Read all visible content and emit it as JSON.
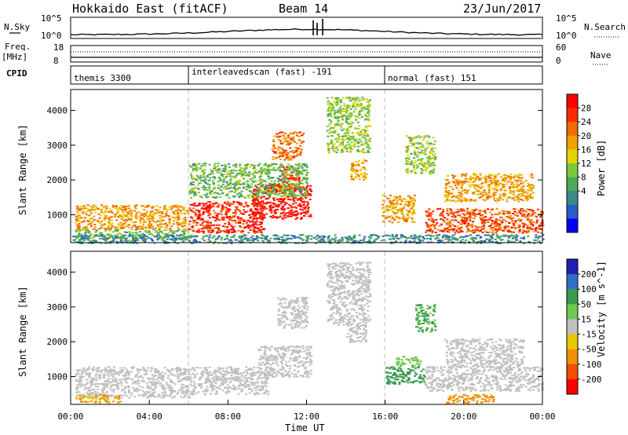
{
  "header": {
    "station": "Hokkaido East (fitACF)",
    "beam": "Beam 14",
    "date": "23/Jun/2017"
  },
  "noise_panel": {
    "left_label": "N.Sky",
    "left_ticks": [
      "10^5",
      "10^0"
    ],
    "right_label": "N.Search",
    "right_ticks": [
      "10^5",
      "10^0"
    ]
  },
  "freq_panel": {
    "left_label_top": "Freq.",
    "left_label_bottom": "[MHz]",
    "left_ticks": [
      "18",
      "8"
    ],
    "right_label": "Nave",
    "right_ticks": [
      "60",
      "0"
    ]
  },
  "cpid_panel": {
    "label": "CPID",
    "modes": [
      {
        "name": "themis 3300"
      },
      {
        "name": "interleavedscan (fast) -191"
      },
      {
        "name": "normal (fast) 151"
      }
    ]
  },
  "chart_data": [
    {
      "type": "heatmap",
      "panel": "power",
      "ylabel": "Slant Range [km]",
      "xlabel": "",
      "x_range_hours": [
        0,
        24
      ],
      "ylim": [
        200,
        4600
      ],
      "y_ticks": [
        "1000",
        "2000",
        "3000",
        "4000"
      ],
      "colorbar": {
        "label": "Power [dB]",
        "ticks": [
          "4",
          "8",
          "12",
          "16",
          "20",
          "24",
          "28"
        ],
        "colors": [
          "#0000ff",
          "#2a5cc8",
          "#3a8a8a",
          "#4ea85a",
          "#7cc83c",
          "#e6d200",
          "#f0a000",
          "#f06a00",
          "#ff2a00",
          "#ff0000"
        ]
      },
      "blobs": [
        {
          "t0": 0.2,
          "t1": 6.0,
          "r0": 600,
          "r1": 1300,
          "v": 20
        },
        {
          "t0": 0.2,
          "t1": 6.0,
          "r0": 300,
          "r1": 600,
          "v": 12
        },
        {
          "t0": 6.0,
          "t1": 9.8,
          "r0": 500,
          "r1": 1400,
          "v": 26
        },
        {
          "t0": 9.2,
          "t1": 12.2,
          "r0": 900,
          "r1": 1900,
          "v": 28
        },
        {
          "t0": 10.5,
          "t1": 11.6,
          "r0": 1700,
          "r1": 2400,
          "v": 26
        },
        {
          "t0": 10.2,
          "t1": 11.8,
          "r0": 2600,
          "r1": 3400,
          "v": 22
        },
        {
          "t0": 13.0,
          "t1": 15.2,
          "r0": 2800,
          "r1": 4400,
          "v": 14
        },
        {
          "t0": 14.2,
          "t1": 15.0,
          "r0": 2000,
          "r1": 2600,
          "v": 20
        },
        {
          "t0": 15.8,
          "t1": 17.5,
          "r0": 800,
          "r1": 1600,
          "v": 20
        },
        {
          "t0": 17.0,
          "t1": 18.5,
          "r0": 2200,
          "r1": 3300,
          "v": 14
        },
        {
          "t0": 18.0,
          "t1": 24.0,
          "r0": 500,
          "r1": 1200,
          "v": 24
        },
        {
          "t0": 19.0,
          "t1": 23.5,
          "r0": 1400,
          "r1": 2200,
          "v": 20
        },
        {
          "t0": 6.0,
          "t1": 12.0,
          "r0": 1500,
          "r1": 2500,
          "v": 12
        },
        {
          "t0": 0.0,
          "t1": 24.0,
          "r0": 200,
          "r1": 450,
          "v": 8
        }
      ]
    },
    {
      "type": "heatmap",
      "panel": "velocity",
      "ylabel": "Slant Range [km]",
      "xlabel": "Time UT",
      "x_range_hours": [
        0,
        24
      ],
      "ylim": [
        200,
        4600
      ],
      "y_ticks": [
        "1000",
        "2000",
        "3000",
        "4000"
      ],
      "x_ticks": [
        "00:00",
        "04:00",
        "08:00",
        "12:00",
        "16:00",
        "20:00",
        "00:00"
      ],
      "colorbar": {
        "label": "Velocity [m s^-1]",
        "ticks": [
          "200",
          "100",
          "50",
          "15",
          "-15",
          "-50",
          "-100",
          "-200"
        ],
        "colors": [
          "#2020b0",
          "#3070c8",
          "#3a9a50",
          "#70c850",
          "#c0c0c0",
          "#e6c800",
          "#f09000",
          "#f05000",
          "#ff0000"
        ]
      },
      "blobs": [
        {
          "t0": 0.2,
          "t1": 6.0,
          "r0": 400,
          "r1": 1300,
          "v": 0
        },
        {
          "t0": 6.0,
          "t1": 10.0,
          "r0": 500,
          "r1": 1300,
          "v": 0
        },
        {
          "t0": 9.5,
          "t1": 12.2,
          "r0": 1000,
          "r1": 1900,
          "v": 0
        },
        {
          "t0": 10.5,
          "t1": 12.0,
          "r0": 2400,
          "r1": 3300,
          "v": 0
        },
        {
          "t0": 13.0,
          "t1": 15.2,
          "r0": 2500,
          "r1": 4300,
          "v": 0
        },
        {
          "t0": 14.0,
          "t1": 15.0,
          "r0": 2000,
          "r1": 2500,
          "v": 0
        },
        {
          "t0": 16.0,
          "t1": 18.0,
          "r0": 800,
          "r1": 1300,
          "v": 60
        },
        {
          "t0": 16.5,
          "t1": 17.8,
          "r0": 1300,
          "r1": 1600,
          "v": 30
        },
        {
          "t0": 18.0,
          "t1": 24.0,
          "r0": 600,
          "r1": 1300,
          "v": 0
        },
        {
          "t0": 19.0,
          "t1": 23.0,
          "r0": 1300,
          "r1": 2100,
          "v": 0
        },
        {
          "t0": 19.0,
          "t1": 21.5,
          "r0": 250,
          "r1": 500,
          "v": -70
        },
        {
          "t0": 0.2,
          "t1": 2.5,
          "r0": 250,
          "r1": 500,
          "v": -40
        },
        {
          "t0": 17.5,
          "t1": 18.5,
          "r0": 2300,
          "r1": 3100,
          "v": 40
        }
      ]
    }
  ]
}
